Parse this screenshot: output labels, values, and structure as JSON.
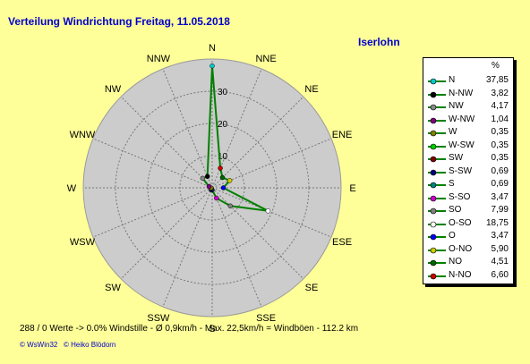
{
  "title": "Verteilung Windrichtung   Freitag, 11.05.2018",
  "location": "Iserlohn",
  "footer_text": "288 / 0 Werte  -> 0.0% Windstille   -   Ø 0,9km/h   -   Max. 22,5km/h = Windböen   -   112.2 km",
  "credits": {
    "wswin": "© WsWin32",
    "author": "© Heiko Blödorn"
  },
  "legend_unit": "%",
  "colors": {
    "background": "#ffff99",
    "plot_circle": "#cccccc",
    "series_line": "#008000"
  },
  "chart_data": {
    "type": "radar",
    "title": "Verteilung Windrichtung   Freitag, 11.05.2018",
    "directions": [
      "N",
      "NNE",
      "NE",
      "ENE",
      "E",
      "ESE",
      "SE",
      "SSE",
      "S",
      "SSW",
      "SW",
      "WSW",
      "W",
      "WNW",
      "NW",
      "NNW"
    ],
    "radial_ticks": [
      "10",
      "20",
      "30"
    ],
    "r_max": 40,
    "unit": "%",
    "series": [
      {
        "values": [
          37.85,
          6.6,
          4.51,
          5.9,
          3.47,
          18.75,
          7.99,
          3.47,
          0.69,
          0.69,
          0.35,
          0.35,
          0.35,
          1.04,
          4.17,
          3.82
        ]
      }
    ],
    "legend": [
      {
        "label": "N",
        "value": "37,85",
        "color": "#00cccc"
      },
      {
        "label": "N-NW",
        "value": "3,82",
        "color": "#000000"
      },
      {
        "label": "NW",
        "value": "4,17",
        "color": "#888888"
      },
      {
        "label": "W-NW",
        "value": "1,04",
        "color": "#800080"
      },
      {
        "label": "W",
        "value": "0,35",
        "color": "#808000"
      },
      {
        "label": "W-SW",
        "value": "0,35",
        "color": "#00cc00"
      },
      {
        "label": "SW",
        "value": "0,35",
        "color": "#800000"
      },
      {
        "label": "S-SW",
        "value": "0,69",
        "color": "#000080"
      },
      {
        "label": "S",
        "value": "0,69",
        "color": "#008080"
      },
      {
        "label": "S-SO",
        "value": "3,47",
        "color": "#cc00cc"
      },
      {
        "label": "SO",
        "value": "7,99",
        "color": "#808080"
      },
      {
        "label": "O-SO",
        "value": "18,75",
        "color": "#ffffff"
      },
      {
        "label": "O",
        "value": "3,47",
        "color": "#0000ff"
      },
      {
        "label": "O-NO",
        "value": "5,90",
        "color": "#cccc00"
      },
      {
        "label": "NO",
        "value": "4,51",
        "color": "#006600"
      },
      {
        "label": "N-NO",
        "value": "6,60",
        "color": "#cc0000"
      }
    ]
  }
}
